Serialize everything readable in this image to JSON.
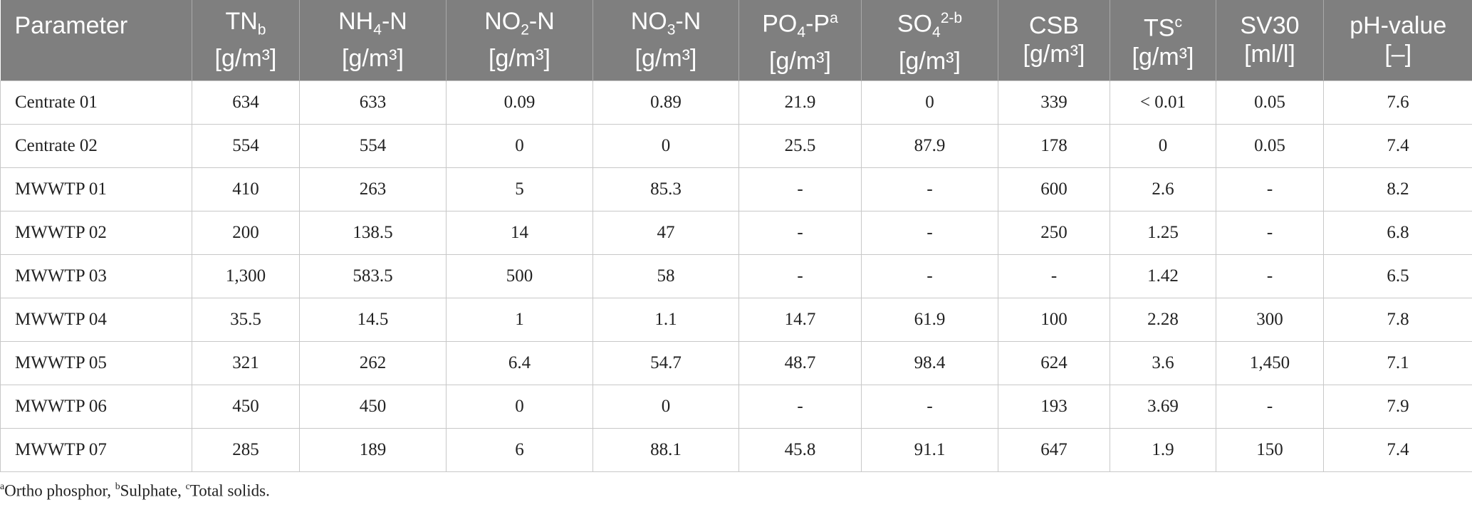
{
  "table": {
    "header": [
      {
        "parts": [
          {
            "text": "Parameter"
          }
        ]
      },
      {
        "parts": [
          {
            "text": "TN"
          },
          {
            "sub": "b"
          }
        ],
        "unit": "[g/m³]"
      },
      {
        "parts": [
          {
            "text": "NH"
          },
          {
            "sub": "4"
          },
          {
            "text": "-N"
          }
        ],
        "unit": "[g/m³]"
      },
      {
        "parts": [
          {
            "text": "NO"
          },
          {
            "sub": "2"
          },
          {
            "text": "-N"
          }
        ],
        "unit": "[g/m³]"
      },
      {
        "parts": [
          {
            "text": "NO"
          },
          {
            "sub": "3"
          },
          {
            "text": "-N"
          }
        ],
        "unit": "[g/m³]"
      },
      {
        "parts": [
          {
            "text": "PO"
          },
          {
            "sub": "4"
          },
          {
            "text": "-P"
          },
          {
            "sup": "a"
          }
        ],
        "unit": "[g/m³]"
      },
      {
        "parts": [
          {
            "text": "SO"
          },
          {
            "sub": "4"
          },
          {
            "sup": "2-b"
          }
        ],
        "unit": "[g/m³]"
      },
      {
        "parts": [
          {
            "text": "CSB"
          }
        ],
        "unit": "[g/m³]"
      },
      {
        "parts": [
          {
            "text": "TS"
          },
          {
            "sup": "c"
          }
        ],
        "unit": "[g/m³]"
      },
      {
        "parts": [
          {
            "text": "SV30"
          }
        ],
        "unit": "[ml/l]"
      },
      {
        "parts": [
          {
            "text": "pH-value"
          }
        ],
        "unit": "[–]"
      }
    ],
    "rows": [
      [
        "Centrate 01",
        "634",
        "633",
        "0.09",
        "0.89",
        "21.9",
        "0",
        "339",
        "< 0.01",
        "0.05",
        "7.6"
      ],
      [
        "Centrate 02",
        "554",
        "554",
        "0",
        "0",
        "25.5",
        "87.9",
        "178",
        "0",
        "0.05",
        "7.4"
      ],
      [
        "MWWTP 01",
        "410",
        "263",
        "5",
        "85.3",
        "-",
        "-",
        "600",
        "2.6",
        "-",
        "8.2"
      ],
      [
        "MWWTP 02",
        "200",
        "138.5",
        "14",
        "47",
        "-",
        "-",
        "250",
        "1.25",
        "-",
        "6.8"
      ],
      [
        "MWWTP 03",
        "1,300",
        "583.5",
        "500",
        "58",
        "-",
        "-",
        "-",
        "1.42",
        "-",
        "6.5"
      ],
      [
        "MWWTP 04",
        "35.5",
        "14.5",
        "1",
        "1.1",
        "14.7",
        "61.9",
        "100",
        "2.28",
        "300",
        "7.8"
      ],
      [
        "MWWTP 05",
        "321",
        "262",
        "6.4",
        "54.7",
        "48.7",
        "98.4",
        "624",
        "3.6",
        "1,450",
        "7.1"
      ],
      [
        "MWWTP 06",
        "450",
        "450",
        "0",
        "0",
        "-",
        "-",
        "193",
        "3.69",
        "-",
        "7.9"
      ],
      [
        "MWWTP 07",
        "285",
        "189",
        "6",
        "88.1",
        "45.8",
        "91.1",
        "647",
        "1.9",
        "150",
        "7.4"
      ]
    ]
  },
  "footnote": {
    "parts": [
      {
        "sup": "a"
      },
      {
        "text": "Ortho phosphor, "
      },
      {
        "sup": "b"
      },
      {
        "text": "Sulphate, "
      },
      {
        "sup": "c"
      },
      {
        "text": "Total solids."
      }
    ]
  }
}
